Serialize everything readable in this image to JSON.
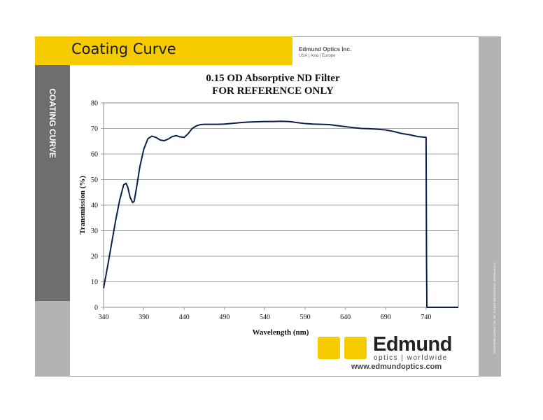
{
  "header": {
    "title": "Coating Curve",
    "brand_name": "Edmund Optics Inc.",
    "brand_regions": "USA | Asia | Europe"
  },
  "sidebar": {
    "label": "COATING CURVE",
    "copyright": "© COPYRIGHT 2008 EDMUND OPTICS, INC. ALL RIGHTS RESERVED"
  },
  "footer": {
    "logo_text": "Edmund",
    "logo_sub": "optics | worldwide",
    "website": "www.edmundoptics.com"
  },
  "colors": {
    "accent": "#f6cc00",
    "sidebar_dark": "#6d6e70",
    "sidebar_light": "#b2b3b5",
    "curve": "#0d1f4c"
  },
  "chart_data": {
    "type": "line",
    "title": "0.15 OD Absorptive ND Filter",
    "subtitle": "FOR REFERENCE ONLY",
    "xlabel": "Wavelength (nm)",
    "ylabel": "Transmission (%)",
    "xlim": [
      340,
      780
    ],
    "ylim": [
      0,
      80
    ],
    "xticks": [
      340,
      390,
      440,
      490,
      540,
      590,
      640,
      690,
      740
    ],
    "yticks": [
      0,
      10,
      20,
      30,
      40,
      50,
      60,
      70,
      80
    ],
    "grid": "horizontal",
    "legend": "none",
    "series": [
      {
        "x": [
          340,
          345,
          350,
          355,
          360,
          365,
          368,
          370,
          373,
          376,
          378,
          381,
          385,
          390,
          395,
          400,
          405,
          410,
          415,
          420,
          425,
          430,
          435,
          440,
          445,
          450,
          455,
          460,
          465,
          470,
          480,
          490,
          500,
          510,
          520,
          530,
          540,
          550,
          560,
          570,
          580,
          590,
          600,
          610,
          620,
          630,
          640,
          650,
          660,
          670,
          680,
          690,
          700,
          710,
          720,
          730,
          740,
          740.5,
          741,
          760,
          780
        ],
        "y": [
          7.5,
          16,
          25,
          34,
          42,
          48,
          48.5,
          47,
          43,
          41,
          41.5,
          47,
          55,
          62,
          66,
          67,
          66.5,
          65.5,
          65.2,
          65.8,
          66.8,
          67.2,
          66.7,
          66.5,
          68,
          70,
          71,
          71.5,
          71.6,
          71.6,
          71.6,
          71.7,
          72,
          72.3,
          72.5,
          72.6,
          72.7,
          72.7,
          72.8,
          72.7,
          72.3,
          71.9,
          71.7,
          71.6,
          71.5,
          71.1,
          70.7,
          70.3,
          70,
          69.9,
          69.7,
          69.4,
          68.8,
          68,
          67.5,
          66.8,
          66.5,
          20,
          0,
          0,
          0
        ]
      }
    ]
  }
}
